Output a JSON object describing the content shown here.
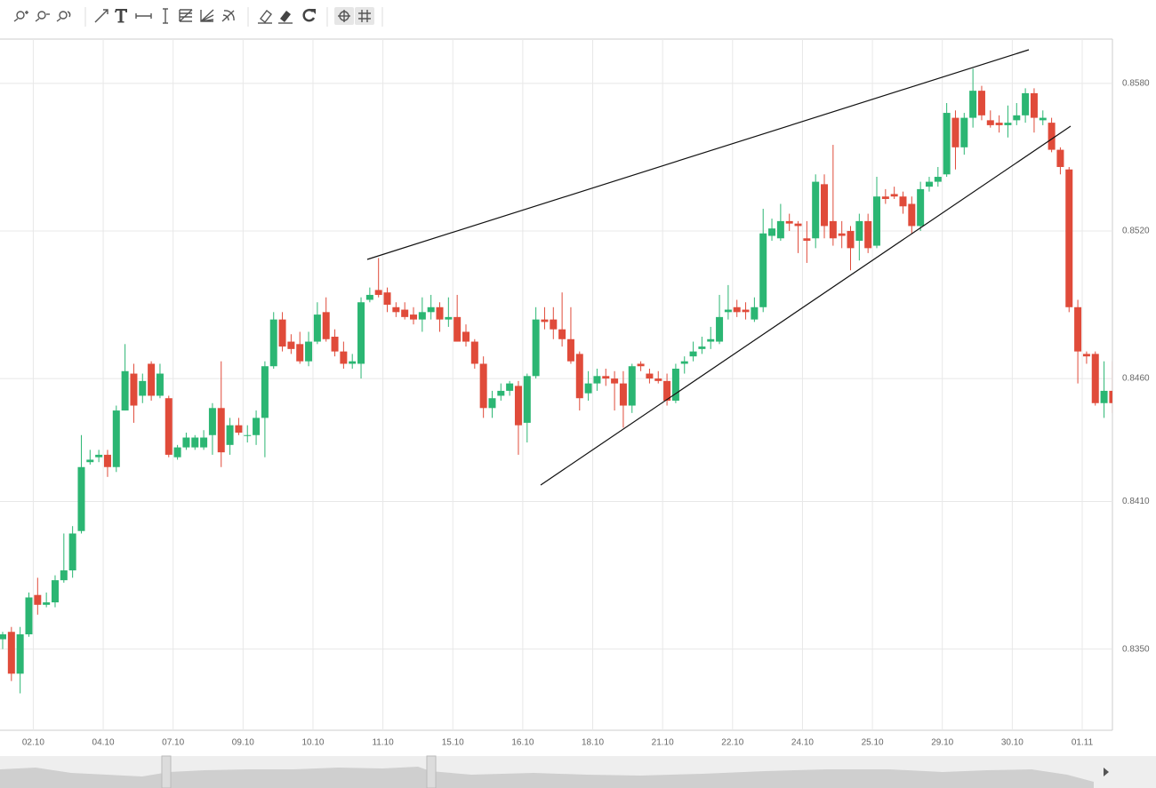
{
  "chart_data": {
    "type": "candlestick",
    "up_color": "#2bb673",
    "down_color": "#e04b3a",
    "grid": true,
    "ylim": [
      0.8317,
      0.8598
    ],
    "yticks": [
      {
        "value": 0.858,
        "label": "0.8580"
      },
      {
        "value": 0.852,
        "label": "0.8520"
      },
      {
        "value": 0.846,
        "label": "0.8460"
      },
      {
        "value": 0.841,
        "label": "0.8410"
      },
      {
        "value": 0.835,
        "label": "0.8350"
      }
    ],
    "xtick_labels": [
      "02.10",
      "04.10",
      "07.10",
      "09.10",
      "10.10",
      "11.10",
      "15.10",
      "16.10",
      "18.10",
      "21.10",
      "22.10",
      "24.10",
      "25.10",
      "29.10",
      "30.10",
      "01.11"
    ],
    "open": [
      0.8354,
      0.8357,
      0.834,
      0.8356,
      0.8372,
      0.8368,
      0.8369,
      0.8378,
      0.8382,
      0.8398,
      0.8426,
      0.8428,
      0.8429,
      0.8424,
      0.8447,
      0.8462,
      0.8453,
      0.8466,
      0.8453,
      0.8452,
      0.8428,
      0.8432,
      0.8432,
      0.8432,
      0.8437,
      0.8448,
      0.8433,
      0.8441,
      0.8437,
      0.8437,
      0.8444,
      0.8465,
      0.8484,
      0.8475,
      0.8474,
      0.8467,
      0.8475,
      0.8487,
      0.8477,
      0.8471,
      0.8466,
      0.8466,
      0.8492,
      0.8496,
      0.8495,
      0.8489,
      0.8488,
      0.8486,
      0.8484,
      0.8487,
      0.8489,
      0.8484,
      0.8485,
      0.8479,
      0.8475,
      0.8466,
      0.8448,
      0.8453,
      0.8455,
      0.8457,
      0.8442,
      0.8461,
      0.8484,
      0.8484,
      0.848,
      0.8476,
      0.847,
      0.8454,
      0.8458,
      0.8461,
      0.846,
      0.8458,
      0.8449,
      0.8466,
      0.8462,
      0.846,
      0.8459,
      0.8451,
      0.8466,
      0.8469,
      0.8472,
      0.8475,
      0.8475,
      0.8487,
      0.8489,
      0.8488,
      0.8484,
      0.8489,
      0.8518,
      0.8517,
      0.8524,
      0.8523,
      0.8517,
      0.8517,
      0.8539,
      0.8524,
      0.8519,
      0.852,
      0.8516,
      0.8524,
      0.8514,
      0.8534,
      0.8535,
      0.8534,
      0.8531,
      0.8522,
      0.8538,
      0.854,
      0.8543,
      0.8566,
      0.8554,
      0.8566,
      0.8577,
      0.8565,
      0.8564,
      0.8563,
      0.8565,
      0.8567,
      0.8576,
      0.8565,
      0.8564,
      0.8553,
      0.8545,
      0.8489,
      0.847,
      0.847,
      0.845,
      0.8455
    ],
    "high": [
      0.8357,
      0.8359,
      0.8359,
      0.8373,
      0.8379,
      0.8373,
      0.838,
      0.8397,
      0.84,
      0.8437,
      0.8431,
      0.8431,
      0.8431,
      0.8449,
      0.8474,
      0.8466,
      0.8462,
      0.8467,
      0.8466,
      0.8453,
      0.8433,
      0.8438,
      0.8437,
      0.8439,
      0.845,
      0.8467,
      0.8444,
      0.8444,
      0.8441,
      0.8447,
      0.8467,
      0.8487,
      0.8487,
      0.8478,
      0.8479,
      0.8479,
      0.8491,
      0.8493,
      0.848,
      0.8475,
      0.847,
      0.8493,
      0.8497,
      0.8509,
      0.8497,
      0.8491,
      0.8491,
      0.8489,
      0.8493,
      0.8494,
      0.8491,
      0.8493,
      0.8494,
      0.8482,
      0.8476,
      0.8469,
      0.8455,
      0.8458,
      0.8459,
      0.8459,
      0.8462,
      0.8489,
      0.8489,
      0.8489,
      0.8495,
      0.8489,
      0.8471,
      0.8463,
      0.8464,
      0.8464,
      0.8463,
      0.8463,
      0.8466,
      0.8467,
      0.8464,
      0.8463,
      0.8462,
      0.8466,
      0.8469,
      0.8475,
      0.8477,
      0.8481,
      0.8494,
      0.8498,
      0.8492,
      0.8491,
      0.8493,
      0.8529,
      0.8525,
      0.8531,
      0.8527,
      0.8524,
      0.8524,
      0.8543,
      0.8543,
      0.8555,
      0.8524,
      0.8522,
      0.8527,
      0.8527,
      0.8542,
      0.8537,
      0.8538,
      0.8536,
      0.8534,
      0.854,
      0.8542,
      0.8546,
      0.8572,
      0.8569,
      0.8568,
      0.8586,
      0.8579,
      0.8569,
      0.8567,
      0.8571,
      0.8572,
      0.8578,
      0.8578,
      0.8569,
      0.8566,
      0.8554,
      0.8546,
      0.8492,
      0.8471,
      0.8471,
      0.8467,
      0.8467
    ],
    "low": [
      0.835,
      0.8337,
      0.8332,
      0.8355,
      0.8364,
      0.8367,
      0.8367,
      0.8377,
      0.8379,
      0.8397,
      0.8425,
      0.8426,
      0.842,
      0.8422,
      0.8447,
      0.8442,
      0.845,
      0.8451,
      0.8452,
      0.8428,
      0.8427,
      0.8431,
      0.8431,
      0.8431,
      0.8429,
      0.8424,
      0.8429,
      0.8437,
      0.8434,
      0.8433,
      0.8428,
      0.8464,
      0.8471,
      0.847,
      0.8466,
      0.8465,
      0.8474,
      0.8475,
      0.8469,
      0.8464,
      0.8464,
      0.846,
      0.8491,
      0.8493,
      0.8487,
      0.8485,
      0.8484,
      0.8482,
      0.8479,
      0.8484,
      0.8479,
      0.8481,
      0.8475,
      0.8473,
      0.8464,
      0.8444,
      0.8444,
      0.8451,
      0.8453,
      0.8429,
      0.8434,
      0.846,
      0.848,
      0.8476,
      0.8473,
      0.8466,
      0.8447,
      0.8451,
      0.8455,
      0.8457,
      0.8447,
      0.844,
      0.8446,
      0.8463,
      0.8458,
      0.8458,
      0.8449,
      0.845,
      0.8462,
      0.8467,
      0.847,
      0.8472,
      0.8474,
      0.8484,
      0.8485,
      0.8484,
      0.8483,
      0.8487,
      0.8516,
      0.8516,
      0.852,
      0.8511,
      0.8507,
      0.8513,
      0.8517,
      0.8514,
      0.8513,
      0.8504,
      0.8508,
      0.8511,
      0.8513,
      0.8531,
      0.8533,
      0.8527,
      0.8519,
      0.852,
      0.8536,
      0.8538,
      0.8542,
      0.8545,
      0.8551,
      0.8562,
      0.8565,
      0.8562,
      0.856,
      0.8558,
      0.8563,
      0.8564,
      0.856,
      0.8563,
      0.8552,
      0.8543,
      0.8487,
      0.8458,
      0.8466,
      0.8449,
      0.8444,
      0.8446
    ],
    "close": [
      0.8356,
      0.834,
      0.8356,
      0.8371,
      0.8368,
      0.8369,
      0.8378,
      0.8382,
      0.8397,
      0.8424,
      0.8427,
      0.8429,
      0.8424,
      0.8447,
      0.8463,
      0.8449,
      0.8459,
      0.8453,
      0.8462,
      0.8429,
      0.8432,
      0.8436,
      0.8436,
      0.8436,
      0.8448,
      0.843,
      0.8441,
      0.8438,
      0.8437,
      0.8444,
      0.8465,
      0.8484,
      0.8473,
      0.8472,
      0.8467,
      0.8475,
      0.8486,
      0.8476,
      0.8471,
      0.8466,
      0.8467,
      0.8491,
      0.8494,
      0.8494,
      0.849,
      0.8487,
      0.8485,
      0.8484,
      0.8487,
      0.8489,
      0.8484,
      0.8485,
      0.8475,
      0.8475,
      0.8466,
      0.8448,
      0.8452,
      0.8455,
      0.8458,
      0.8441,
      0.8461,
      0.8484,
      0.8483,
      0.848,
      0.8476,
      0.8467,
      0.8452,
      0.8458,
      0.8461,
      0.846,
      0.8458,
      0.8449,
      0.8465,
      0.8465,
      0.846,
      0.8459,
      0.8451,
      0.8464,
      0.8467,
      0.8471,
      0.8473,
      0.8476,
      0.8485,
      0.8488,
      0.8487,
      0.8487,
      0.8489,
      0.8519,
      0.8521,
      0.8524,
      0.8523,
      0.8522,
      0.8516,
      0.854,
      0.8522,
      0.8517,
      0.8518,
      0.8513,
      0.8524,
      0.8513,
      0.8534,
      0.8533,
      0.8534,
      0.853,
      0.8522,
      0.8537,
      0.854,
      0.8542,
      0.8568,
      0.8554,
      0.8566,
      0.8577,
      0.8567,
      0.8563,
      0.8563,
      0.8564,
      0.8567,
      0.8576,
      0.8566,
      0.8566,
      0.8553,
      0.8546,
      0.8489,
      0.8471,
      0.8469,
      0.845,
      0.8455,
      0.845
    ]
  }
}
